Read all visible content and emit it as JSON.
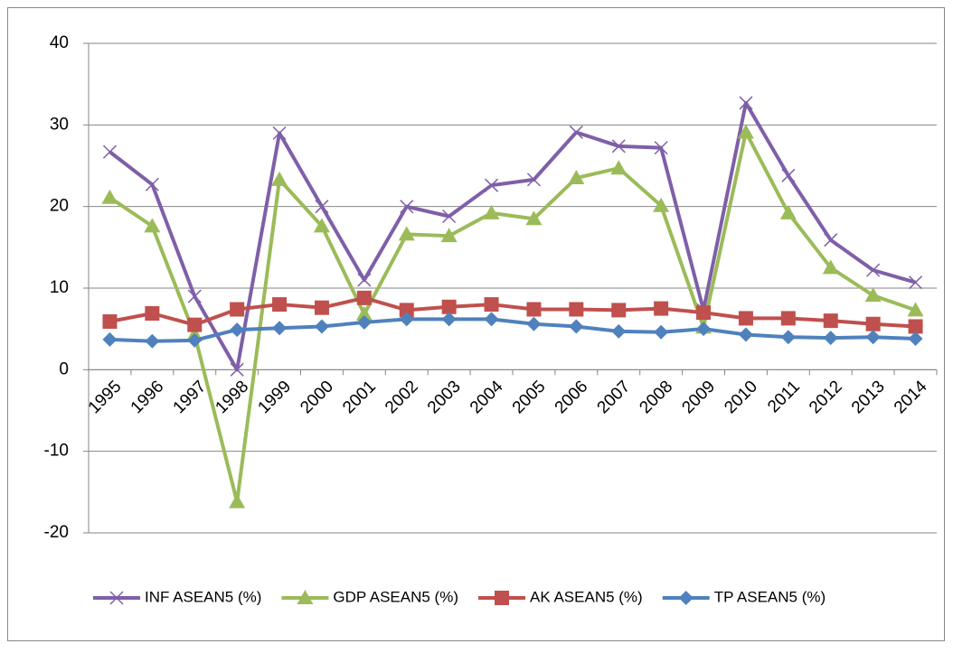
{
  "chart_data": {
    "type": "line",
    "categories": [
      "1995",
      "1996",
      "1997",
      "1998",
      "1999",
      "2000",
      "2001",
      "2002",
      "2003",
      "2004",
      "2005",
      "2006",
      "2007",
      "2008",
      "2009",
      "2010",
      "2011",
      "2012",
      "2013",
      "2014"
    ],
    "series": [
      {
        "name": "INF ASEAN5 (%)",
        "color": "#7f5fa8",
        "marker": "x",
        "values": [
          26.7,
          22.7,
          9,
          0,
          29,
          20,
          11,
          20,
          18.8,
          22.6,
          23.3,
          29.1,
          27.4,
          27.2,
          7.3,
          32.7,
          23.8,
          15.9,
          12.2,
          10.7
        ]
      },
      {
        "name": "GDP ASEAN5 (%)",
        "color": "#9bbb59",
        "marker": "triangle",
        "values": [
          21.1,
          17.6,
          4.3,
          -16.2,
          23.3,
          17.6,
          6.8,
          16.6,
          16.4,
          19.2,
          18.5,
          23.5,
          24.7,
          20.1,
          5.2,
          29.1,
          19.2,
          12.5,
          9.1,
          7.3
        ]
      },
      {
        "name": "AK ASEAN5 (%)",
        "color": "#c0504d",
        "marker": "square",
        "values": [
          5.9,
          6.9,
          5.5,
          7.4,
          8.0,
          7.6,
          8.8,
          7.3,
          7.7,
          8.0,
          7.4,
          7.4,
          7.3,
          7.5,
          7.0,
          6.3,
          6.3,
          6.0,
          5.6,
          5.3
        ]
      },
      {
        "name": "TP ASEAN5 (%)",
        "color": "#4f81bd",
        "marker": "diamond",
        "values": [
          3.7,
          3.5,
          3.6,
          4.9,
          5.1,
          5.3,
          5.8,
          6.2,
          6.2,
          6.2,
          5.6,
          5.3,
          4.7,
          4.6,
          5.0,
          4.3,
          4.0,
          3.9,
          4.0,
          3.8
        ]
      }
    ],
    "ylim": [
      -20,
      40
    ],
    "yticks": [
      -20,
      -10,
      0,
      10,
      20,
      30,
      40
    ],
    "grid": true,
    "legend": "bottom"
  }
}
